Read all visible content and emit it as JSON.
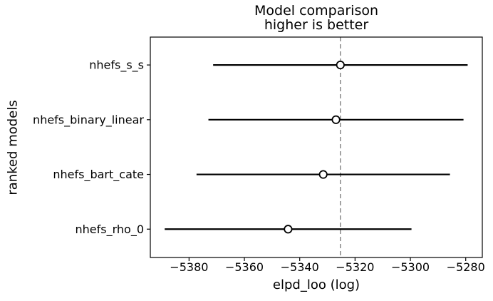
{
  "figure": {
    "title_line1": "Model comparison",
    "title_line2": "higher is better",
    "xlabel": "elpd_loo (log)",
    "ylabel": "ranked models"
  },
  "chart_data": {
    "type": "scatter",
    "title": "Model comparison\nhigher is better",
    "xlabel": "elpd_loo (log)",
    "ylabel": "ranked models",
    "legend": false,
    "grid": false,
    "xlim": [
      -5394,
      -5274
    ],
    "x_ticks": [
      -5380,
      -5360,
      -5340,
      -5320,
      -5300,
      -5280
    ],
    "x_tick_labels": [
      "−5380",
      "−5360",
      "−5340",
      "−5320",
      "−5300",
      "−5280"
    ],
    "models": [
      {
        "name": "nhefs_s_s",
        "elpd_loo": -5325.3,
        "se": 46.0
      },
      {
        "name": "nhefs_binary_linear",
        "elpd_loo": -5326.9,
        "se": 46.1
      },
      {
        "name": "nhefs_bart_cate",
        "elpd_loo": -5331.5,
        "se": 45.8
      },
      {
        "name": "nhefs_rho_0",
        "elpd_loo": -5344.2,
        "se": 44.6
      }
    ],
    "reference_line_x": -5325.3,
    "marker": "open-circle",
    "colors": {
      "errorbar": "#000000",
      "marker_fill": "#ffffff",
      "marker_edge": "#000000",
      "reference_line": "#888888",
      "frame": "#000000",
      "text": "#000000",
      "background": "#ffffff"
    }
  }
}
